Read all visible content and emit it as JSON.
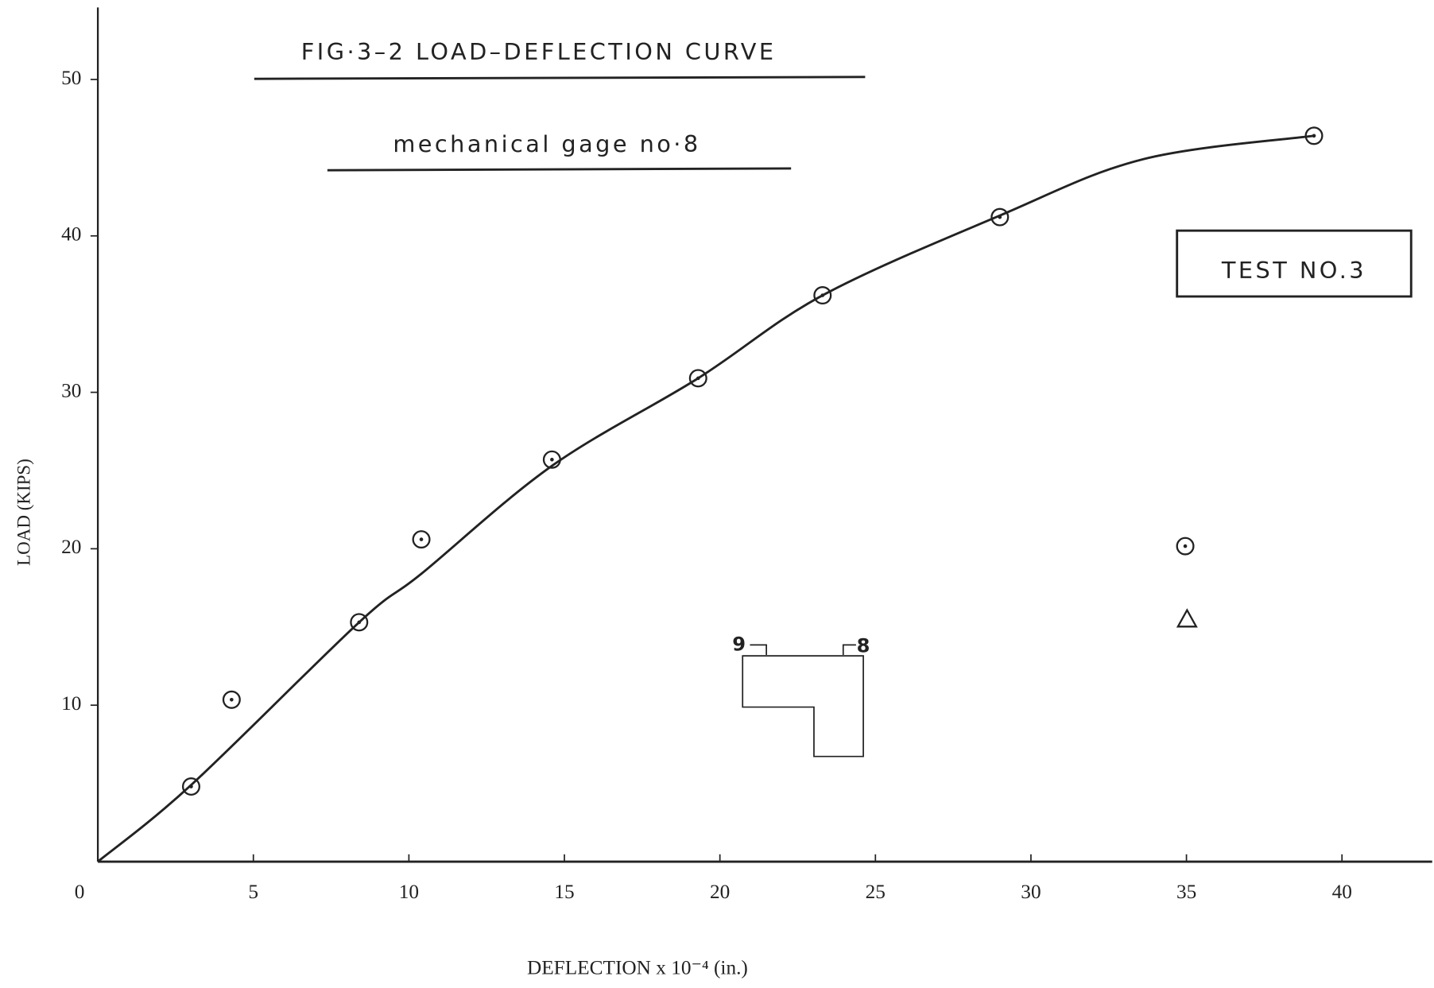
{
  "chart_data": {
    "type": "scatter",
    "title": "FIG·3–2 LOAD–DEFLECTION CURVE",
    "subtitle": "mechanical gage no·8",
    "annotation": "TEST NO.3",
    "diagram_labels": [
      "9",
      "8"
    ],
    "xlabel": "DEFLECTION x 10⁻⁴ (in.)",
    "ylabel": "LOAD (KIPS)",
    "x": [
      3,
      4.3,
      8.4,
      10.4,
      14.6,
      19.3,
      23.3,
      29,
      39.1
    ],
    "values": [
      4.8,
      10.35,
      15.3,
      20.6,
      25.7,
      30.9,
      36.2,
      41.2,
      46.4
    ],
    "curve": {
      "x": [
        0,
        3,
        8.4,
        10.4,
        14.6,
        19.3,
        23.3,
        29,
        33.6,
        39.1
      ],
      "values": [
        0,
        4.9,
        15.3,
        18.4,
        25.3,
        30.9,
        36.2,
        41.3,
        44.9,
        46.4
      ]
    },
    "color": "#222222",
    "xlim": [
      0,
      42.9
    ],
    "ylim": [
      0,
      54.6
    ],
    "xticks": [
      0,
      5,
      10,
      15,
      20,
      25,
      30,
      35,
      40
    ],
    "yticks": [
      10,
      20,
      30,
      40,
      50
    ]
  }
}
